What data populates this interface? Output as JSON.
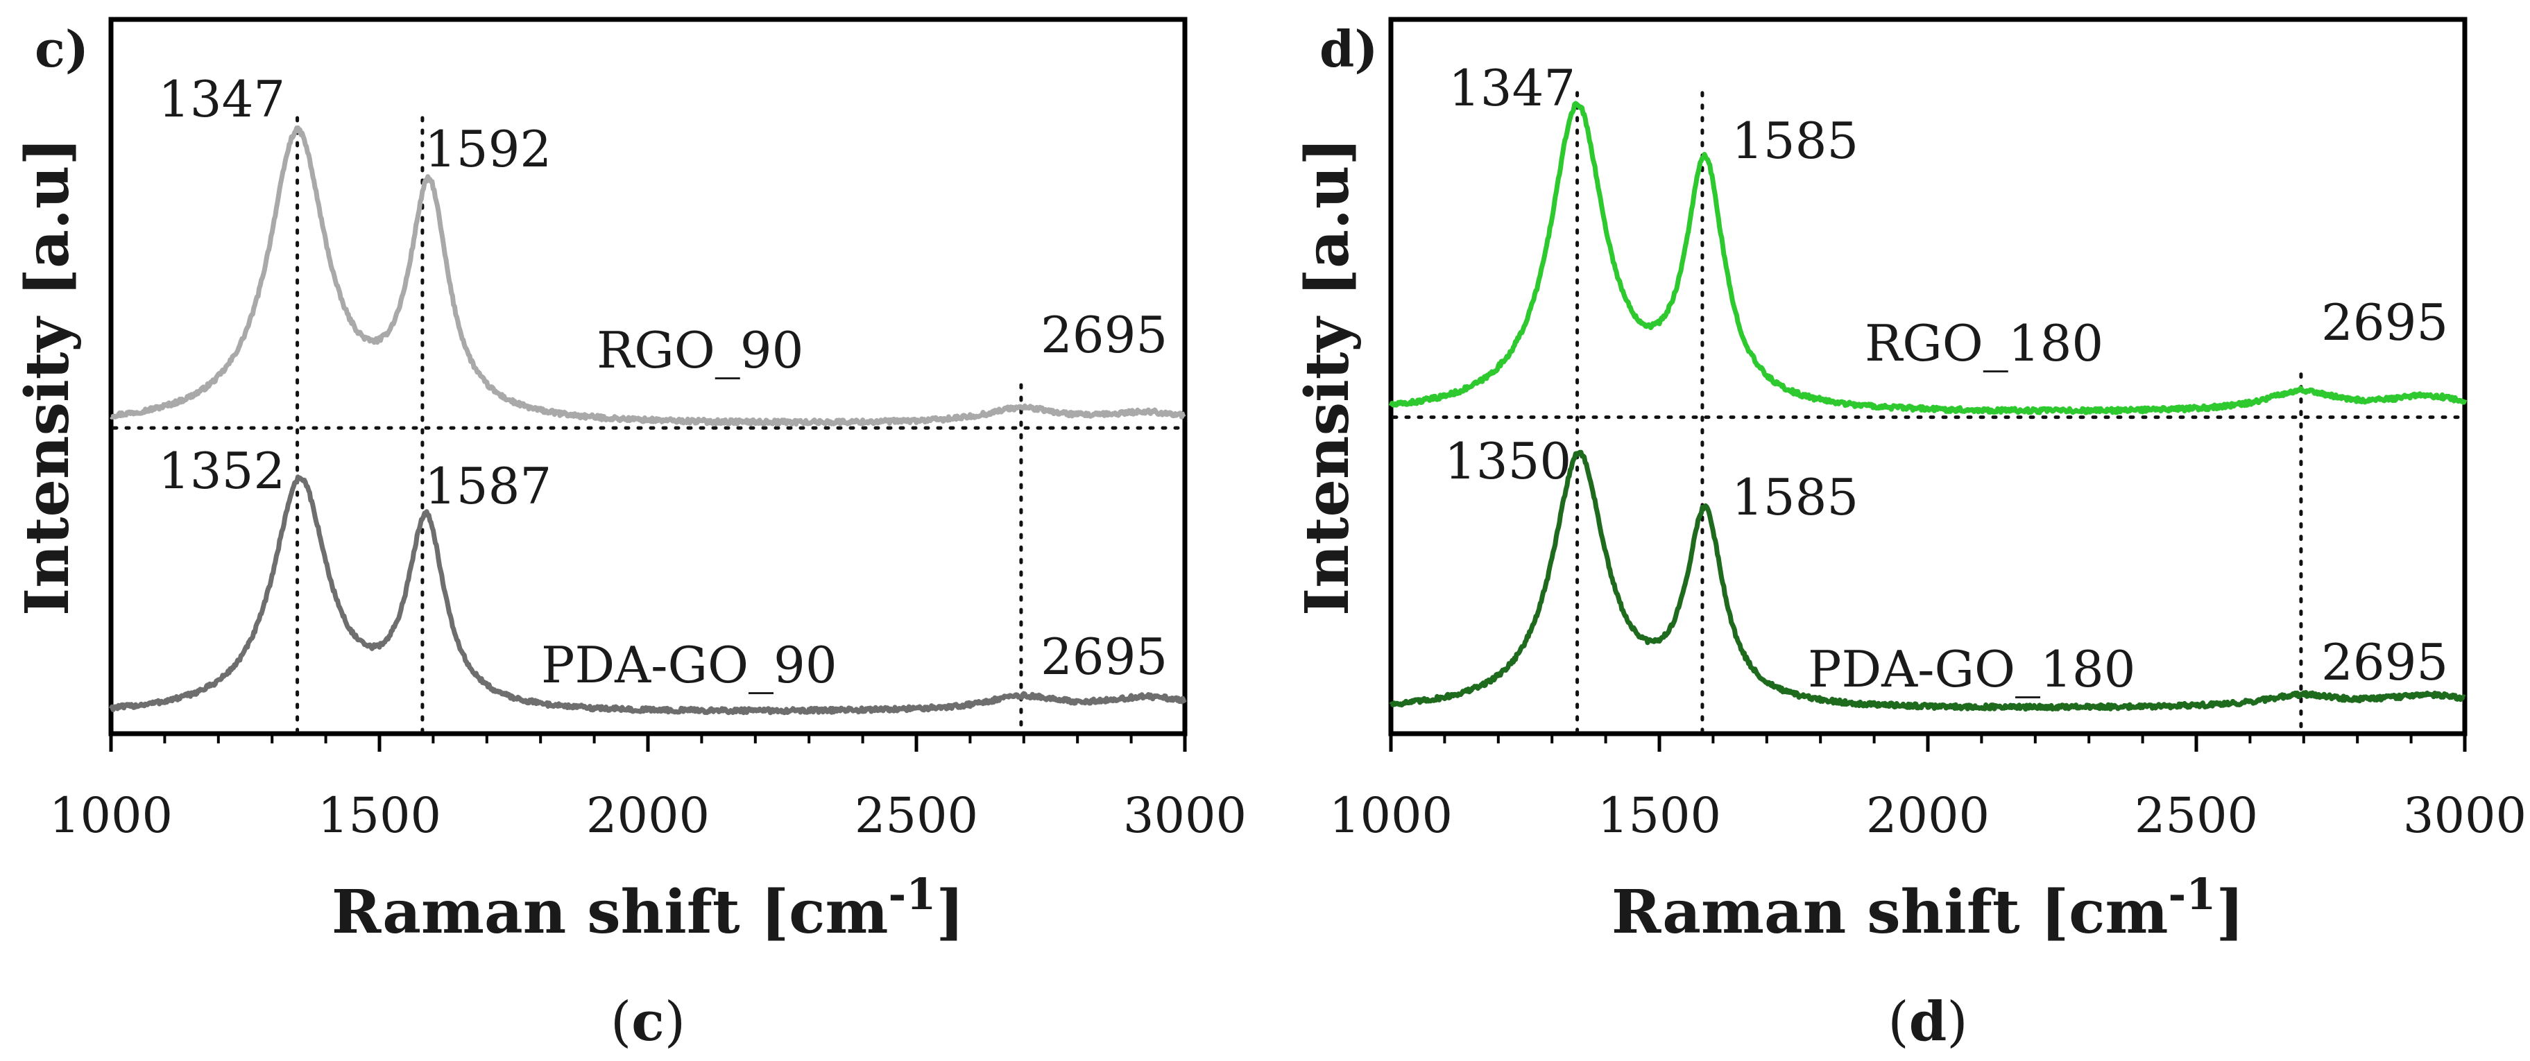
{
  "chart_data": [
    {
      "type": "line",
      "panel_letter": "c)",
      "caption": "c",
      "xlabel": "Raman shift [cm",
      "xlabel_sup": "-1",
      "xlabel_end": "]",
      "ylabel": "Intensity [a.u]",
      "xlim": [
        1000,
        3000
      ],
      "ylim": [
        0,
        1
      ],
      "x_ticks": [
        1000,
        1500,
        2000,
        2500,
        3000
      ],
      "tick_labels": [
        "1000",
        "1500",
        "2000",
        "2500",
        "3000"
      ],
      "y_ticks": false,
      "grid": false,
      "series": [
        {
          "name": "RGO_90",
          "color": "#a9a9a9",
          "baseline": 0.43,
          "end_value": 0.435,
          "peaks": [
            {
              "x": 1347,
              "height": 0.405,
              "width": 65,
              "label": "1347"
            },
            {
              "x": 1592,
              "height": 0.32,
              "width": 44,
              "label": "1592"
            },
            {
              "x": 2695,
              "height": 0.02,
              "width": 80,
              "label": "2695"
            },
            {
              "x": 2930,
              "height": 0.013,
              "width": 90
            }
          ]
        },
        {
          "name": "PDA-GO_90",
          "color": "#6e6e6e",
          "baseline": 0.025,
          "end_value": 0.035,
          "peaks": [
            {
              "x": 1352,
              "height": 0.325,
              "width": 62,
              "label": "1352"
            },
            {
              "x": 1587,
              "height": 0.262,
              "width": 42,
              "label": "1587"
            },
            {
              "x": 2695,
              "height": 0.018,
              "width": 80,
              "label": "2695"
            },
            {
              "x": 2930,
              "height": 0.015,
              "width": 90
            }
          ]
        }
      ],
      "reference_lines": {
        "vertical": [
          1347,
          1580,
          2695
        ],
        "horizontal": [
          0.43
        ]
      }
    },
    {
      "type": "line",
      "panel_letter": "d)",
      "caption": "d",
      "xlabel": "Raman shift [cm",
      "xlabel_sup": "-1",
      "xlabel_end": "]",
      "ylabel": "Intensity [a.u]",
      "xlim": [
        1000,
        3000
      ],
      "ylim": [
        0,
        1
      ],
      "x_ticks": [
        1000,
        1500,
        2000,
        2500,
        3000
      ],
      "tick_labels": [
        "1000",
        "1500",
        "2000",
        "2500",
        "3000"
      ],
      "y_ticks": false,
      "grid": false,
      "series": [
        {
          "name": "RGO_180",
          "color": "#2ec92e",
          "baseline": 0.445,
          "end_value": 0.452,
          "peaks": [
            {
              "x": 1347,
              "height": 0.425,
              "width": 62,
              "label": "1347"
            },
            {
              "x": 1585,
              "height": 0.336,
              "width": 44,
              "label": "1585"
            },
            {
              "x": 2695,
              "height": 0.027,
              "width": 80,
              "label": "2695"
            },
            {
              "x": 2930,
              "height": 0.018,
              "width": 90
            }
          ]
        },
        {
          "name": "PDA-GO_180",
          "color": "#1e6b1e",
          "baseline": 0.03,
          "end_value": 0.04,
          "peaks": [
            {
              "x": 1350,
              "height": 0.355,
              "width": 60,
              "label": "1350"
            },
            {
              "x": 1585,
              "height": 0.265,
              "width": 42,
              "label": "1585"
            },
            {
              "x": 2695,
              "height": 0.015,
              "width": 80,
              "label": "2695"
            },
            {
              "x": 2930,
              "height": 0.013,
              "width": 90
            }
          ]
        }
      ],
      "reference_lines": {
        "vertical": [
          1347,
          1580,
          2695
        ],
        "horizontal": [
          0.445
        ]
      }
    }
  ]
}
